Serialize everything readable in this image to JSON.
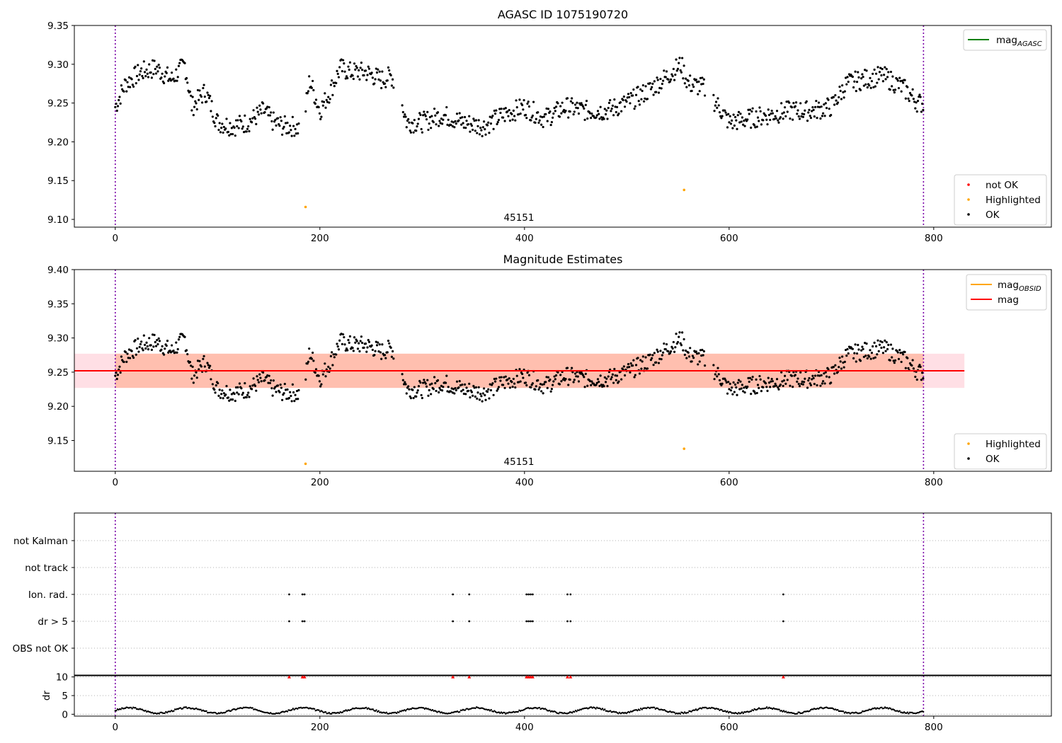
{
  "chart_data": [
    {
      "type": "scatter",
      "title": "AGASC ID 1075190720",
      "annotation": "45151",
      "xlim": [
        -40,
        915
      ],
      "ylim": [
        9.09,
        9.35
      ],
      "xticks": [
        0,
        200,
        400,
        600,
        800
      ],
      "xtick_labels": [
        "0",
        "200",
        "400",
        "600",
        "800"
      ],
      "yticks": [
        9.1,
        9.15,
        9.2,
        9.25,
        9.3,
        9.35
      ],
      "ytick_labels": [
        "9.10",
        "9.15",
        "9.20",
        "9.25",
        "9.30",
        "9.35"
      ],
      "vlines": [
        0,
        790
      ],
      "vline_color": "#7b00a8",
      "legend_top": {
        "position": "top-right",
        "items": [
          {
            "label": "mag",
            "sub": "AGASC",
            "color": "#008000",
            "kind": "line"
          }
        ]
      },
      "legend_bottom": {
        "position": "bottom-right",
        "items": [
          {
            "label": "not OK",
            "color": "#ff0000",
            "kind": "dot"
          },
          {
            "label": "Highlighted",
            "color": "#ffa500",
            "kind": "dot"
          },
          {
            "label": "OK",
            "color": "#000000",
            "kind": "dot"
          }
        ]
      },
      "series": [
        {
          "name": "OK",
          "color": "#000000",
          "x": [
            0,
            10,
            25,
            40,
            55,
            68,
            75,
            88,
            100,
            115,
            130,
            145,
            155,
            165,
            175,
            183,
            190,
            200,
            210,
            220,
            230,
            245,
            260,
            270,
            278,
            285,
            300,
            320,
            340,
            360,
            380,
            400,
            420,
            440,
            460,
            480,
            500,
            520,
            540,
            553,
            560,
            575,
            590,
            600,
            620,
            640,
            660,
            680,
            700,
            715,
            730,
            750,
            770,
            785,
            790
          ],
          "y": [
            9.245,
            9.275,
            9.29,
            9.295,
            9.28,
            9.3,
            9.245,
            9.265,
            9.225,
            9.22,
            9.225,
            9.24,
            9.225,
            9.22,
            9.22,
            9.215,
            9.28,
            9.24,
            9.265,
            9.295,
            9.29,
            9.29,
            9.28,
            9.285,
            9.26,
            9.225,
            9.225,
            9.235,
            9.225,
            9.22,
            9.235,
            9.245,
            9.23,
            9.245,
            9.24,
            9.24,
            9.25,
            9.265,
            9.285,
            9.3,
            9.275,
            9.27,
            9.245,
            9.225,
            9.23,
            9.235,
            9.24,
            9.24,
            9.245,
            9.275,
            9.28,
            9.285,
            9.27,
            9.25,
            9.25
          ]
        },
        {
          "name": "Highlighted",
          "color": "#ffa500",
          "x": [
            186,
            556
          ],
          "y": [
            9.116,
            9.138
          ]
        }
      ]
    },
    {
      "type": "scatter",
      "title": "Magnitude Estimates",
      "annotation": "45151",
      "xlim": [
        -40,
        915
      ],
      "ylim": [
        9.105,
        9.4
      ],
      "xticks": [
        0,
        200,
        400,
        600,
        800
      ],
      "xtick_labels": [
        "0",
        "200",
        "400",
        "600",
        "800"
      ],
      "yticks": [
        9.15,
        9.2,
        9.25,
        9.3,
        9.35,
        9.4
      ],
      "ytick_labels": [
        "9.15",
        "9.20",
        "9.25",
        "9.30",
        "9.35",
        "9.40"
      ],
      "vlines": [
        0,
        790
      ],
      "vline_color": "#7b00a8",
      "hlines": [
        {
          "name": "mag",
          "y": 9.252,
          "x0": -40,
          "x1": 830,
          "color": "#ff0000",
          "band": [
            9.227,
            9.277
          ],
          "band_color": "#ffc0cb"
        },
        {
          "name": "mag_OBSID",
          "y": 9.252,
          "x0": 0,
          "x1": 790,
          "color": "#ffa500",
          "band": [
            9.227,
            9.277
          ],
          "band_color": "#ffa07a"
        }
      ],
      "legend_top": {
        "position": "top-right",
        "items": [
          {
            "label": "mag",
            "sub": "OBSID",
            "color": "#ffa500",
            "kind": "line"
          },
          {
            "label": "mag",
            "sub": "",
            "color": "#ff0000",
            "kind": "line"
          }
        ]
      },
      "legend_bottom": {
        "position": "bottom-right",
        "items": [
          {
            "label": "Highlighted",
            "color": "#ffa500",
            "kind": "dot"
          },
          {
            "label": "OK",
            "color": "#000000",
            "kind": "dot"
          }
        ]
      },
      "series": [
        {
          "name": "OK",
          "color": "#000000",
          "same_as_panel": 0
        },
        {
          "name": "Highlighted",
          "color": "#ffa500",
          "x": [
            186,
            556
          ],
          "y": [
            9.116,
            9.138
          ]
        }
      ]
    },
    {
      "type": "scatter",
      "title": "",
      "xlim": [
        -40,
        915
      ],
      "xticks": [
        0,
        200,
        400,
        600,
        800
      ],
      "xtick_labels": [
        "0",
        "200",
        "400",
        "600",
        "800"
      ],
      "vlines": [
        0,
        790
      ],
      "vline_color": "#7b00a8",
      "flag_rows": [
        "not Kalman",
        "not track",
        "Ion. rad.",
        "dr > 5",
        "OBS not OK"
      ],
      "flag_points": {
        "Ion. rad.": [
          170,
          183,
          185,
          330,
          346,
          402,
          404,
          406,
          408,
          442,
          445,
          653
        ],
        "dr > 5": [
          170,
          183,
          185,
          330,
          346,
          402,
          404,
          406,
          408,
          442,
          445,
          653
        ]
      },
      "dr_panel": {
        "ylabel": "dr",
        "ylim": [
          -0.5,
          10.5
        ],
        "yticks": [
          0,
          5,
          10
        ],
        "ytick_labels": [
          "0",
          "5",
          "10"
        ],
        "clipped_x": [
          170,
          183,
          185,
          330,
          346,
          402,
          404,
          406,
          408,
          442,
          445,
          653
        ],
        "clipped_value": 10,
        "clipped_color": "#ff0000",
        "typical_range": [
          0.2,
          1.8
        ]
      }
    }
  ]
}
